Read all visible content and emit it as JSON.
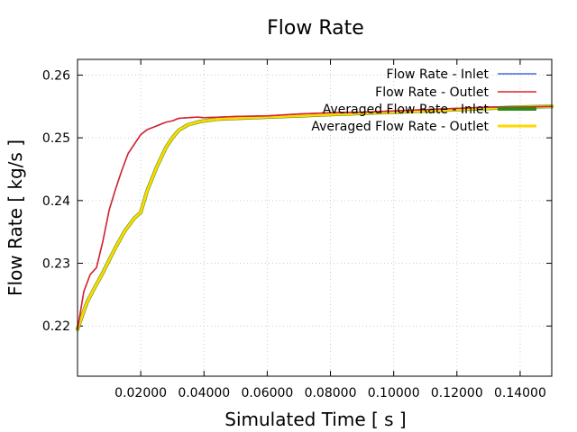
{
  "chart_data": {
    "type": "line",
    "title": "Flow Rate",
    "xlabel": "Simulated Time [ s ]",
    "ylabel": "Flow Rate [ kg/s ]",
    "xlim": [
      0,
      0.15
    ],
    "ylim": [
      0.212,
      0.2625
    ],
    "grid": true,
    "legend_position": "top-right",
    "xticks": [
      0.02,
      0.04,
      0.06,
      0.08,
      0.1,
      0.12,
      0.14
    ],
    "xtick_labels": [
      "0.02000",
      "0.04000",
      "0.06000",
      "0.08000",
      "0.10000",
      "0.12000",
      "0.14000"
    ],
    "yticks": [
      0.22,
      0.23,
      0.24,
      0.25,
      0.26
    ],
    "ytick_labels": [
      "0.22",
      "0.23",
      "0.24",
      "0.25",
      "0.26"
    ],
    "series": [
      {
        "name": "Flow Rate - Inlet",
        "color": "#4169e1",
        "width": 1.5,
        "x": [
          0,
          0.002,
          0.004,
          0.006,
          0.008,
          0.01,
          0.012,
          0.014,
          0.016,
          0.018,
          0.02,
          0.022,
          0.024,
          0.026,
          0.028,
          0.03,
          0.032,
          0.035,
          0.038,
          0.04,
          0.045,
          0.05,
          0.06,
          0.07,
          0.08,
          0.09,
          0.1,
          0.11,
          0.12,
          0.13,
          0.14,
          0.15
        ],
        "y": [
          0.2195,
          0.2255,
          0.2282,
          0.2293,
          0.2335,
          0.2385,
          0.2418,
          0.2448,
          0.2475,
          0.249,
          0.2505,
          0.2513,
          0.2517,
          0.2521,
          0.2525,
          0.2527,
          0.2531,
          0.2532,
          0.2533,
          0.2532,
          0.2533,
          0.2534,
          0.2535,
          0.2538,
          0.254,
          0.2541,
          0.2543,
          0.2545,
          0.2547,
          0.2549,
          0.2549,
          0.255
        ]
      },
      {
        "name": "Flow Rate - Outlet",
        "color": "#e0202a",
        "width": 1.5,
        "x": [
          0,
          0.002,
          0.004,
          0.006,
          0.008,
          0.01,
          0.012,
          0.014,
          0.016,
          0.018,
          0.02,
          0.022,
          0.024,
          0.026,
          0.028,
          0.03,
          0.032,
          0.035,
          0.038,
          0.04,
          0.045,
          0.05,
          0.06,
          0.07,
          0.08,
          0.09,
          0.1,
          0.11,
          0.12,
          0.13,
          0.14,
          0.15
        ],
        "y": [
          0.2195,
          0.2255,
          0.2282,
          0.2293,
          0.2335,
          0.2385,
          0.2418,
          0.2448,
          0.2475,
          0.249,
          0.2505,
          0.2513,
          0.2517,
          0.2521,
          0.2525,
          0.2527,
          0.2531,
          0.2532,
          0.2533,
          0.2532,
          0.2533,
          0.2534,
          0.2535,
          0.2538,
          0.254,
          0.2541,
          0.2543,
          0.2545,
          0.2547,
          0.2549,
          0.2549,
          0.255
        ]
      },
      {
        "name": "Averaged Flow Rate - Inlet",
        "color": "#2e8b13",
        "width": 4,
        "x": [
          0,
          0.003,
          0.005,
          0.008,
          0.01,
          0.012,
          0.015,
          0.018,
          0.02,
          0.022,
          0.025,
          0.028,
          0.03,
          0.032,
          0.035,
          0.038,
          0.04,
          0.045,
          0.05,
          0.06,
          0.07,
          0.08,
          0.09,
          0.1,
          0.11,
          0.12,
          0.13,
          0.14,
          0.15
        ],
        "y": [
          0.2195,
          0.2238,
          0.2257,
          0.2285,
          0.2305,
          0.2325,
          0.2352,
          0.2372,
          0.2381,
          0.2415,
          0.2453,
          0.2485,
          0.25,
          0.2512,
          0.2521,
          0.2525,
          0.2527,
          0.253,
          0.2531,
          0.2533,
          0.2535,
          0.2537,
          0.2539,
          0.2541,
          0.2543,
          0.2545,
          0.2547,
          0.2549,
          0.255
        ]
      },
      {
        "name": "Averaged Flow Rate - Outlet",
        "color": "#ffd700",
        "width": 3,
        "x": [
          0,
          0.003,
          0.005,
          0.008,
          0.01,
          0.012,
          0.015,
          0.018,
          0.02,
          0.022,
          0.025,
          0.028,
          0.03,
          0.032,
          0.035,
          0.038,
          0.04,
          0.045,
          0.05,
          0.06,
          0.07,
          0.08,
          0.09,
          0.1,
          0.11,
          0.12,
          0.13,
          0.14,
          0.15
        ],
        "y": [
          0.2195,
          0.2238,
          0.2257,
          0.2285,
          0.2305,
          0.2325,
          0.2352,
          0.2372,
          0.2381,
          0.2415,
          0.2453,
          0.2485,
          0.25,
          0.2512,
          0.2521,
          0.2525,
          0.2527,
          0.253,
          0.2531,
          0.2533,
          0.2535,
          0.2537,
          0.2539,
          0.2541,
          0.2543,
          0.2545,
          0.2547,
          0.2549,
          0.255
        ]
      }
    ]
  }
}
